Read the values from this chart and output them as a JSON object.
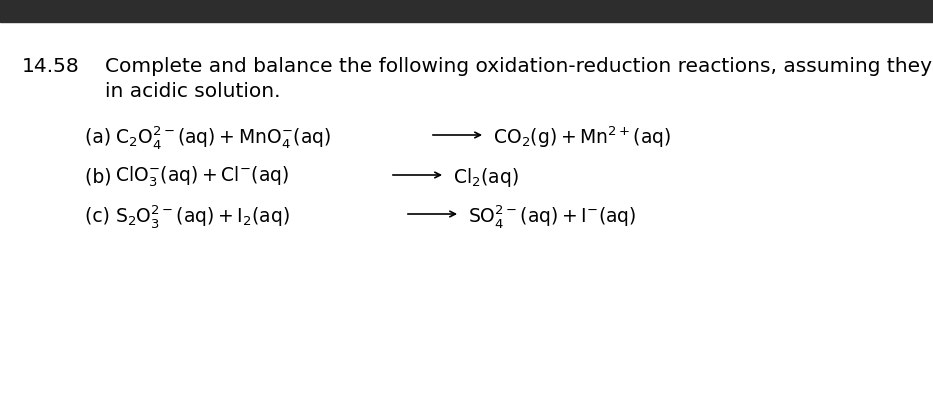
{
  "problem_number": "14.58",
  "header_line1": "Complete and balance the following oxidation-reduction reactions, assuming they occur",
  "header_line2": "in acidic solution.",
  "background_color": "#ffffff",
  "header_bar_color": "#2d2d2d",
  "reactions": [
    {
      "label": "(a)  ",
      "reactant_math": "$\\mathrm{C_2O_4^{2-}(aq)+MnO_4^{-}(aq)}$",
      "product_math": "$\\mathrm{CO_2(g)+Mn^{2+}(aq)}$"
    },
    {
      "label": "(b)  ",
      "reactant_math": "$\\mathrm{ClO_3^{-}(aq)+Cl^{-}(aq)}$",
      "product_math": "$\\mathrm{Cl_2(aq)}$"
    },
    {
      "label": "(c)  ",
      "reactant_math": "$\\mathrm{S_2O_3^{2-}(aq)+I_2(aq)}$",
      "product_math": "$\\mathrm{SO_4^{2-}(aq)+I^{-}(aq)}$"
    }
  ],
  "font_size_header": 14.5,
  "font_size_problem": 14.5,
  "font_size_reaction": 13.5
}
